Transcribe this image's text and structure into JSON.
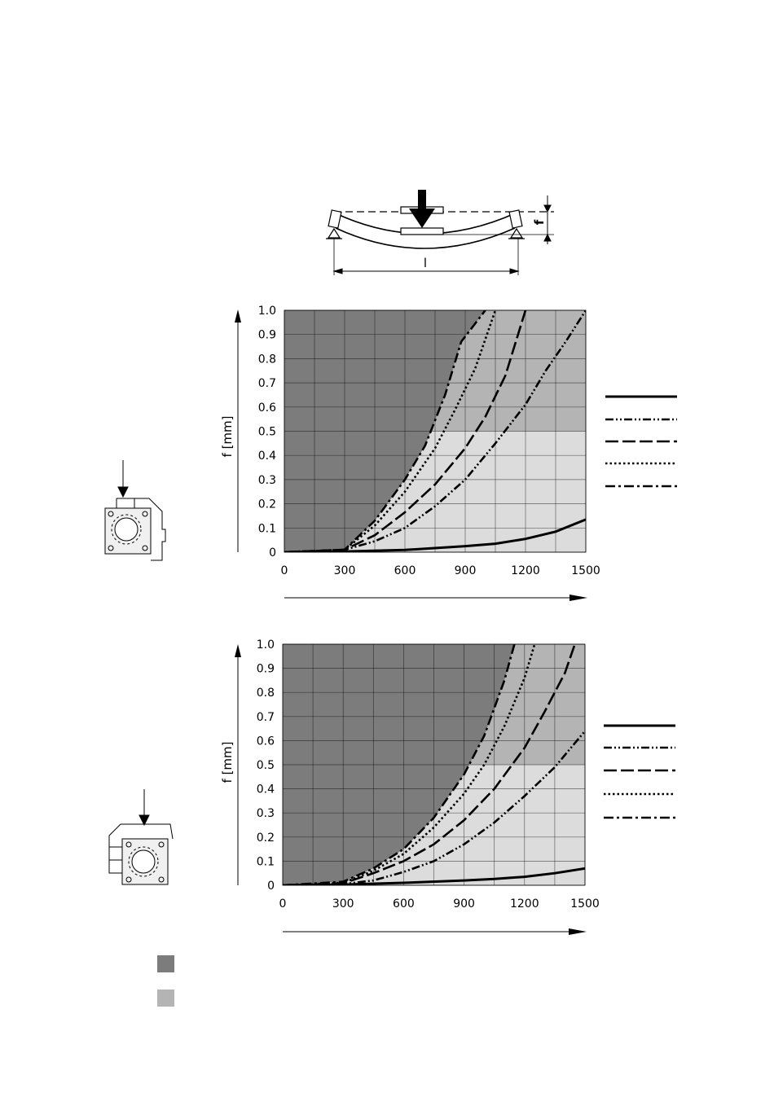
{
  "diagram": {
    "f_label": "f",
    "l_label": "l"
  },
  "legend_box": {
    "color_dark": "#7c7c7c",
    "color_light": "#b4b4b4"
  },
  "chart_data": [
    {
      "type": "line",
      "ylabel": "f [mm]",
      "xlabel": "",
      "xlim": [
        0,
        1500
      ],
      "ylim": [
        0,
        1.0
      ],
      "xticks": [
        0,
        300,
        600,
        900,
        1200,
        1500
      ],
      "yticks": [
        0,
        0.1,
        0.2,
        0.3,
        0.4,
        0.5,
        0.6,
        0.7,
        0.8,
        0.9,
        1.0
      ],
      "ytick_labels": [
        "0",
        "0.1",
        "0.2",
        "0.3",
        "0.4",
        "0.5",
        "0.6",
        "0.7",
        "0.8",
        "0.9",
        "1.0"
      ],
      "regions": {
        "dark": "#7c7c7c",
        "mid": "#b4b4b4",
        "light": "#dcdcdc",
        "mid_light_boundary_f": 0.5
      },
      "series": [
        {
          "style": "solid",
          "points": [
            [
              0,
              0
            ],
            [
              300,
              0.003
            ],
            [
              600,
              0.009
            ],
            [
              900,
              0.025
            ],
            [
              1050,
              0.035
            ],
            [
              1200,
              0.055
            ],
            [
              1350,
              0.085
            ],
            [
              1500,
              0.135
            ]
          ]
        },
        {
          "style": "dash-dot-dot",
          "points": [
            [
              0,
              0
            ],
            [
              300,
              0.01
            ],
            [
              450,
              0.045
            ],
            [
              600,
              0.1
            ],
            [
              750,
              0.19
            ],
            [
              900,
              0.3
            ],
            [
              1050,
              0.45
            ],
            [
              1200,
              0.61
            ],
            [
              1300,
              0.75
            ],
            [
              1400,
              0.87
            ],
            [
              1500,
              1.0
            ]
          ]
        },
        {
          "style": "long-dash",
          "points": [
            [
              0,
              0
            ],
            [
              300,
              0.01
            ],
            [
              450,
              0.07
            ],
            [
              600,
              0.165
            ],
            [
              750,
              0.28
            ],
            [
              900,
              0.43
            ],
            [
              1000,
              0.56
            ],
            [
              1100,
              0.73
            ],
            [
              1200,
              1.0
            ]
          ]
        },
        {
          "style": "dotted",
          "points": [
            [
              0,
              0
            ],
            [
              300,
              0.01
            ],
            [
              450,
              0.11
            ],
            [
              600,
              0.25
            ],
            [
              750,
              0.43
            ],
            [
              850,
              0.59
            ],
            [
              950,
              0.76
            ],
            [
              1050,
              1.0
            ]
          ]
        },
        {
          "style": "dash-dot",
          "points": [
            [
              0,
              0
            ],
            [
              300,
              0.01
            ],
            [
              450,
              0.13
            ],
            [
              600,
              0.3
            ],
            [
              700,
              0.44
            ],
            [
              800,
              0.65
            ],
            [
              880,
              0.87
            ],
            [
              1000,
              1.0
            ]
          ]
        }
      ]
    },
    {
      "type": "line",
      "ylabel": "f [mm]",
      "xlabel": "",
      "xlim": [
        0,
        1500
      ],
      "ylim": [
        0,
        1.0
      ],
      "xticks": [
        0,
        300,
        600,
        900,
        1200,
        1500
      ],
      "yticks": [
        0,
        0.1,
        0.2,
        0.3,
        0.4,
        0.5,
        0.6,
        0.7,
        0.8,
        0.9,
        1.0
      ],
      "ytick_labels": [
        "0",
        "0.1",
        "0.2",
        "0.3",
        "0.4",
        "0.5",
        "0.6",
        "0.7",
        "0.8",
        "0.9",
        "1.0"
      ],
      "regions": {
        "dark": "#7c7c7c",
        "mid": "#b4b4b4",
        "light": "#dcdcdc",
        "mid_light_boundary_f": 0.5
      },
      "series": [
        {
          "style": "solid",
          "points": [
            [
              0,
              0
            ],
            [
              300,
              0.003
            ],
            [
              600,
              0.01
            ],
            [
              900,
              0.02
            ],
            [
              1050,
              0.026
            ],
            [
              1200,
              0.035
            ],
            [
              1350,
              0.05
            ],
            [
              1500,
              0.07
            ]
          ]
        },
        {
          "style": "dash-dot-dot",
          "points": [
            [
              0,
              0
            ],
            [
              300,
              0.005
            ],
            [
              450,
              0.02
            ],
            [
              600,
              0.055
            ],
            [
              750,
              0.1
            ],
            [
              900,
              0.17
            ],
            [
              1050,
              0.26
            ],
            [
              1200,
              0.37
            ],
            [
              1350,
              0.49
            ],
            [
              1500,
              0.64
            ]
          ]
        },
        {
          "style": "long-dash",
          "points": [
            [
              0,
              0
            ],
            [
              300,
              0.008
            ],
            [
              450,
              0.05
            ],
            [
              600,
              0.1
            ],
            [
              750,
              0.17
            ],
            [
              900,
              0.27
            ],
            [
              1050,
              0.4
            ],
            [
              1200,
              0.57
            ],
            [
              1300,
              0.72
            ],
            [
              1400,
              0.88
            ],
            [
              1450,
              1.0
            ]
          ]
        },
        {
          "style": "dotted",
          "points": [
            [
              0,
              0
            ],
            [
              300,
              0.01
            ],
            [
              450,
              0.06
            ],
            [
              600,
              0.13
            ],
            [
              750,
              0.24
            ],
            [
              900,
              0.38
            ],
            [
              1000,
              0.5
            ],
            [
              1100,
              0.66
            ],
            [
              1200,
              0.86
            ],
            [
              1250,
              1.0
            ]
          ]
        },
        {
          "style": "dash-dot",
          "points": [
            [
              0,
              0
            ],
            [
              300,
              0.015
            ],
            [
              450,
              0.07
            ],
            [
              600,
              0.15
            ],
            [
              750,
              0.28
            ],
            [
              900,
              0.46
            ],
            [
              1000,
              0.62
            ],
            [
              1100,
              0.85
            ],
            [
              1150,
              1.0
            ]
          ]
        }
      ]
    }
  ]
}
